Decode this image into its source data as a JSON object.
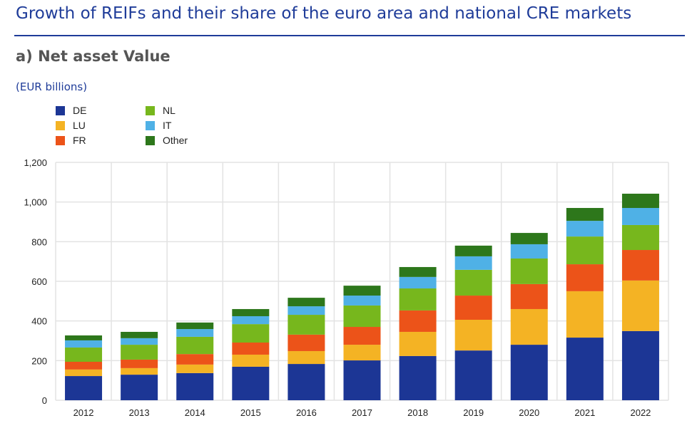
{
  "title": "Growth of REIFs and their share of the euro area and national CRE markets",
  "chart_data": {
    "type": "bar",
    "stacked": true,
    "title": "a) Net asset Value",
    "ylabel": "(EUR billions)",
    "xlabel": "",
    "ylim": [
      0,
      1200
    ],
    "yticks": [
      0,
      200,
      400,
      600,
      800,
      1000,
      1200
    ],
    "ytick_labels": [
      "0",
      "200",
      "400",
      "600",
      "800",
      "1,000",
      "1,200"
    ],
    "grid": true,
    "legend_position": "top-left",
    "categories": [
      "2012",
      "2013",
      "2014",
      "2015",
      "2016",
      "2017",
      "2018",
      "2019",
      "2020",
      "2021",
      "2022"
    ],
    "series": [
      {
        "name": "DE",
        "color": "#1c3695",
        "values": [
          122,
          129,
          137,
          169,
          183,
          201,
          223,
          251,
          280,
          316,
          349
        ]
      },
      {
        "name": "LU",
        "color": "#f4b324",
        "values": [
          33,
          33,
          43,
          61,
          65,
          79,
          122,
          155,
          180,
          234,
          255
        ]
      },
      {
        "name": "FR",
        "color": "#ec5319",
        "values": [
          39,
          43,
          53,
          61,
          83,
          90,
          108,
          122,
          126,
          136,
          154
        ]
      },
      {
        "name": "NL",
        "color": "#77b71d",
        "values": [
          72,
          75,
          87,
          93,
          100,
          108,
          111,
          130,
          129,
          140,
          126
        ]
      },
      {
        "name": "IT",
        "color": "#4fb1e6",
        "values": [
          36,
          33,
          39,
          40,
          43,
          50,
          58,
          68,
          72,
          79,
          86
        ]
      },
      {
        "name": "Other",
        "color": "#2d771b",
        "values": [
          25,
          32,
          33,
          36,
          43,
          50,
          50,
          54,
          57,
          65,
          72
        ]
      }
    ]
  }
}
